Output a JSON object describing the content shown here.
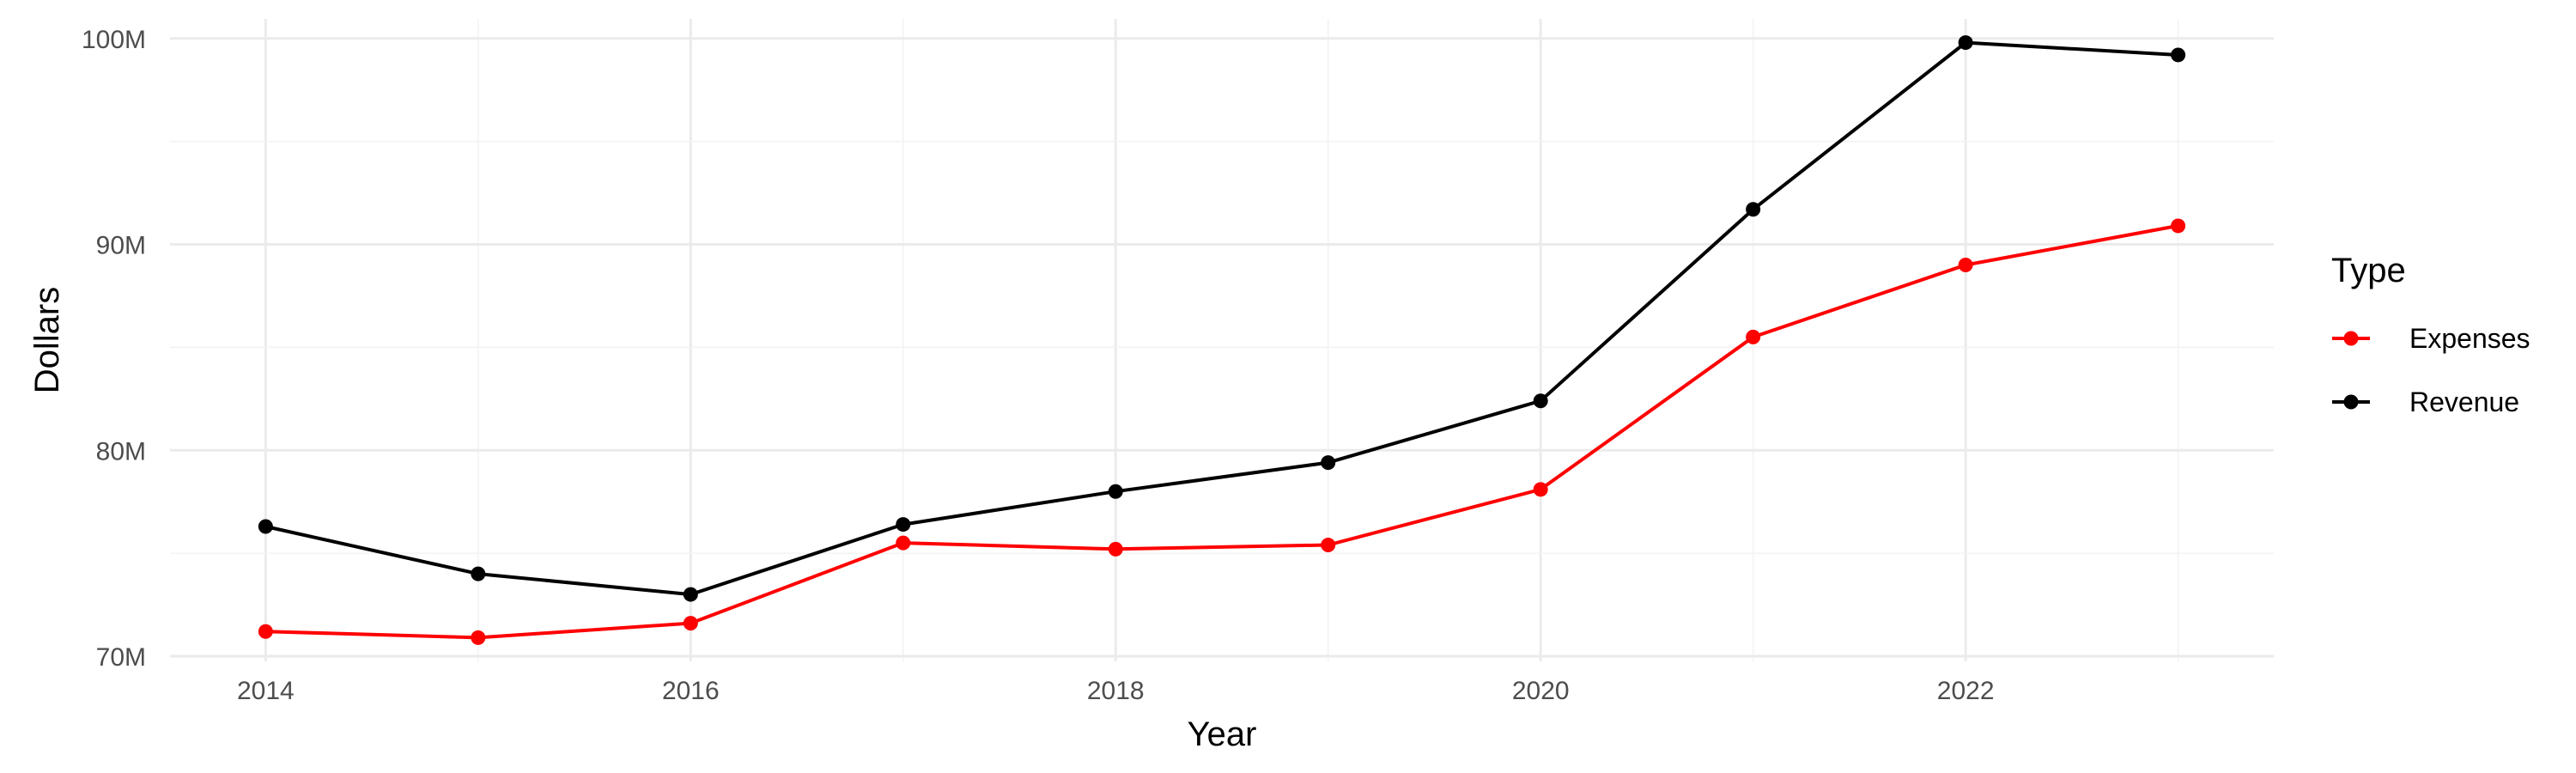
{
  "chart_data": {
    "type": "line",
    "title": "",
    "xlabel": "Year",
    "ylabel": "Dollars",
    "x": [
      2014,
      2015,
      2016,
      2017,
      2018,
      2019,
      2020,
      2021,
      2022,
      2023
    ],
    "xlim": [
      2013.55,
      2023.45
    ],
    "ylim": [
      69.75,
      100.95
    ],
    "x_ticks": [
      2014,
      2016,
      2018,
      2020,
      2022
    ],
    "x_tick_labels": [
      "2014",
      "2016",
      "2018",
      "2020",
      "2022"
    ],
    "y_ticks": [
      70,
      80,
      90,
      100
    ],
    "y_tick_labels": [
      "70M",
      "80M",
      "90M",
      "100M"
    ],
    "y_unit": "millions of dollars",
    "grid": true,
    "legend": {
      "title": "Type",
      "position": "right"
    },
    "series": [
      {
        "name": "Expenses",
        "color": "#ff0000",
        "values": [
          71.2,
          70.9,
          71.6,
          75.5,
          75.2,
          75.4,
          78.1,
          85.5,
          89.0,
          90.9
        ]
      },
      {
        "name": "Revenue",
        "color": "#000000",
        "values": [
          76.3,
          74.0,
          73.0,
          76.4,
          78.0,
          79.4,
          82.4,
          91.7,
          99.8,
          99.2
        ]
      }
    ]
  }
}
